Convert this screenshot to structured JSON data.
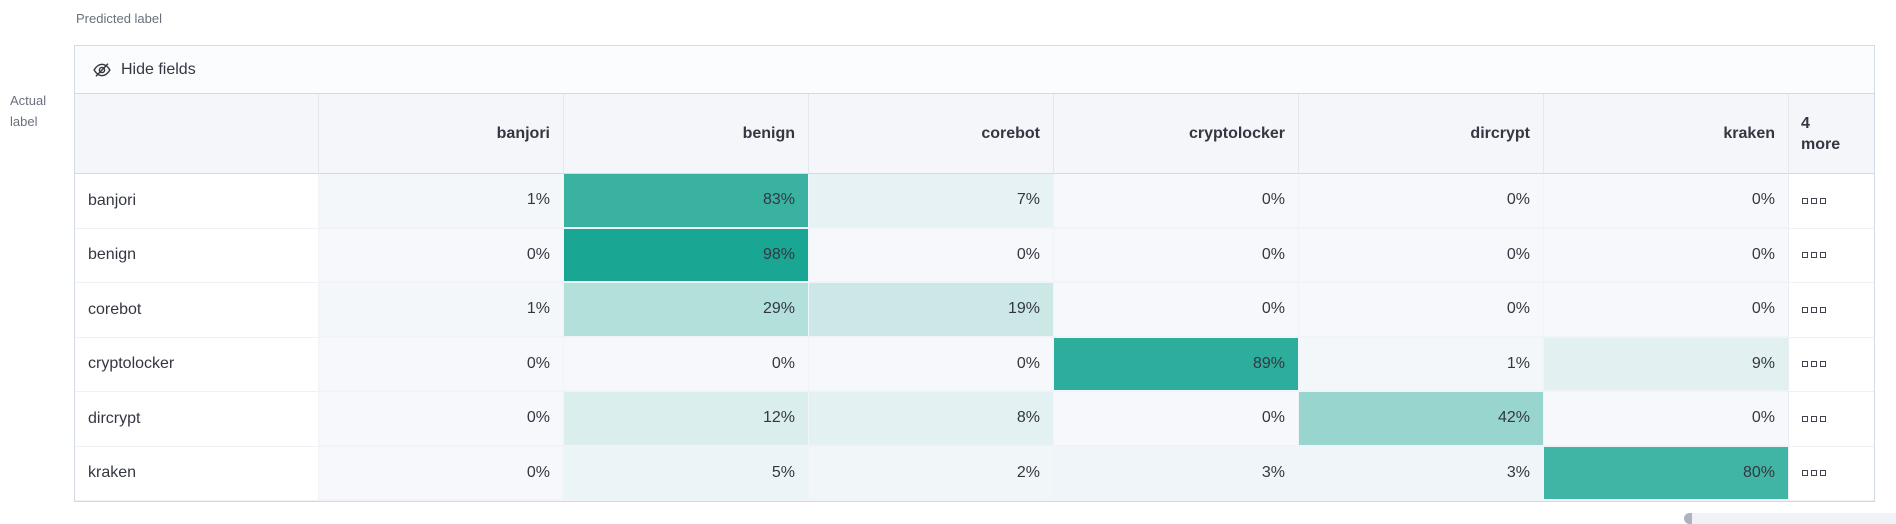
{
  "axes": {
    "predicted_label": "Predicted label",
    "actual_label": "Actual label"
  },
  "toolbar": {
    "hide_fields": "Hide fields",
    "hide_fields_icon": "eye-slash-icon"
  },
  "table": {
    "columns": [
      "banjori",
      "benign",
      "corebot",
      "cryptolocker",
      "dircrypt",
      "kraken"
    ],
    "more_header": {
      "count": "4",
      "label": "more"
    },
    "more_cell_icon": "boxes-horizontal-icon",
    "rows": [
      {
        "label": "banjori",
        "values": [
          1,
          83,
          7,
          0,
          0,
          0
        ]
      },
      {
        "label": "benign",
        "values": [
          0,
          98,
          0,
          0,
          0,
          0
        ]
      },
      {
        "label": "corebot",
        "values": [
          1,
          29,
          19,
          0,
          0,
          0
        ]
      },
      {
        "label": "cryptolocker",
        "values": [
          0,
          0,
          0,
          89,
          1,
          9
        ]
      },
      {
        "label": "dircrypt",
        "values": [
          0,
          12,
          8,
          0,
          42,
          0
        ]
      },
      {
        "label": "kraken",
        "values": [
          0,
          5,
          2,
          3,
          3,
          80
        ]
      }
    ],
    "value_unit": "%"
  },
  "colors": {
    "heat_full": "#14A490",
    "heat_zero": "#F6F8FB",
    "header_bg": "#F4F6FA",
    "panel_border": "#D3DAE6",
    "text": "#343741",
    "muted_text": "#69707D"
  },
  "chart_data": {
    "type": "heatmap",
    "xlabel": "Predicted label",
    "ylabel": "Actual label",
    "x": [
      "banjori",
      "benign",
      "corebot",
      "cryptolocker",
      "dircrypt",
      "kraken"
    ],
    "y": [
      "banjori",
      "benign",
      "corebot",
      "cryptolocker",
      "dircrypt",
      "kraken"
    ],
    "values_percent": [
      [
        1,
        83,
        7,
        0,
        0,
        0
      ],
      [
        0,
        98,
        0,
        0,
        0,
        0
      ],
      [
        1,
        29,
        19,
        0,
        0,
        0
      ],
      [
        0,
        0,
        0,
        89,
        1,
        9
      ],
      [
        0,
        12,
        8,
        0,
        42,
        0
      ],
      [
        0,
        5,
        2,
        3,
        3,
        80
      ]
    ],
    "hidden_columns_note": "4 more",
    "color_scale": {
      "min_color": "#F6F8FB",
      "max_color": "#14A490",
      "domain": [
        0,
        100
      ]
    }
  }
}
